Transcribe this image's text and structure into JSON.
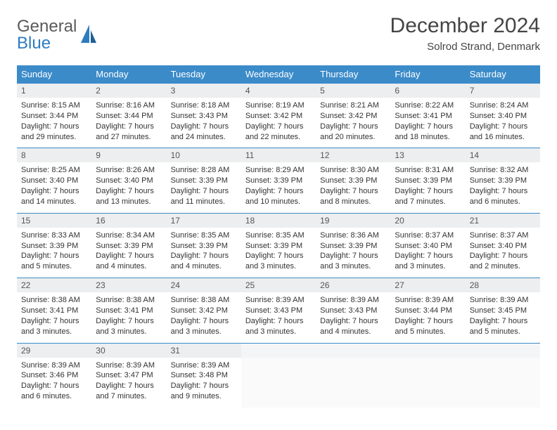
{
  "brand": {
    "part1": "General",
    "part2": "Blue"
  },
  "title": "December 2024",
  "subtitle": "Solrod Strand, Denmark",
  "colors": {
    "header_bg": "#3b8bc9",
    "header_fg": "#ffffff",
    "daynum_bg": "#eceeef",
    "row_border": "#3b8bc9",
    "text": "#333333",
    "page_bg": "#ffffff"
  },
  "typography": {
    "title_fontsize": 30,
    "subtitle_fontsize": 15,
    "header_fontsize": 13,
    "daynum_fontsize": 12,
    "body_fontsize": 11
  },
  "layout": {
    "columns": 7,
    "weeks": 5
  },
  "weekdays": [
    "Sunday",
    "Monday",
    "Tuesday",
    "Wednesday",
    "Thursday",
    "Friday",
    "Saturday"
  ],
  "days": [
    {
      "n": "1",
      "sunrise": "Sunrise: 8:15 AM",
      "sunset": "Sunset: 3:44 PM",
      "daylight": "Daylight: 7 hours and 29 minutes."
    },
    {
      "n": "2",
      "sunrise": "Sunrise: 8:16 AM",
      "sunset": "Sunset: 3:44 PM",
      "daylight": "Daylight: 7 hours and 27 minutes."
    },
    {
      "n": "3",
      "sunrise": "Sunrise: 8:18 AM",
      "sunset": "Sunset: 3:43 PM",
      "daylight": "Daylight: 7 hours and 24 minutes."
    },
    {
      "n": "4",
      "sunrise": "Sunrise: 8:19 AM",
      "sunset": "Sunset: 3:42 PM",
      "daylight": "Daylight: 7 hours and 22 minutes."
    },
    {
      "n": "5",
      "sunrise": "Sunrise: 8:21 AM",
      "sunset": "Sunset: 3:42 PM",
      "daylight": "Daylight: 7 hours and 20 minutes."
    },
    {
      "n": "6",
      "sunrise": "Sunrise: 8:22 AM",
      "sunset": "Sunset: 3:41 PM",
      "daylight": "Daylight: 7 hours and 18 minutes."
    },
    {
      "n": "7",
      "sunrise": "Sunrise: 8:24 AM",
      "sunset": "Sunset: 3:40 PM",
      "daylight": "Daylight: 7 hours and 16 minutes."
    },
    {
      "n": "8",
      "sunrise": "Sunrise: 8:25 AM",
      "sunset": "Sunset: 3:40 PM",
      "daylight": "Daylight: 7 hours and 14 minutes."
    },
    {
      "n": "9",
      "sunrise": "Sunrise: 8:26 AM",
      "sunset": "Sunset: 3:40 PM",
      "daylight": "Daylight: 7 hours and 13 minutes."
    },
    {
      "n": "10",
      "sunrise": "Sunrise: 8:28 AM",
      "sunset": "Sunset: 3:39 PM",
      "daylight": "Daylight: 7 hours and 11 minutes."
    },
    {
      "n": "11",
      "sunrise": "Sunrise: 8:29 AM",
      "sunset": "Sunset: 3:39 PM",
      "daylight": "Daylight: 7 hours and 10 minutes."
    },
    {
      "n": "12",
      "sunrise": "Sunrise: 8:30 AM",
      "sunset": "Sunset: 3:39 PM",
      "daylight": "Daylight: 7 hours and 8 minutes."
    },
    {
      "n": "13",
      "sunrise": "Sunrise: 8:31 AM",
      "sunset": "Sunset: 3:39 PM",
      "daylight": "Daylight: 7 hours and 7 minutes."
    },
    {
      "n": "14",
      "sunrise": "Sunrise: 8:32 AM",
      "sunset": "Sunset: 3:39 PM",
      "daylight": "Daylight: 7 hours and 6 minutes."
    },
    {
      "n": "15",
      "sunrise": "Sunrise: 8:33 AM",
      "sunset": "Sunset: 3:39 PM",
      "daylight": "Daylight: 7 hours and 5 minutes."
    },
    {
      "n": "16",
      "sunrise": "Sunrise: 8:34 AM",
      "sunset": "Sunset: 3:39 PM",
      "daylight": "Daylight: 7 hours and 4 minutes."
    },
    {
      "n": "17",
      "sunrise": "Sunrise: 8:35 AM",
      "sunset": "Sunset: 3:39 PM",
      "daylight": "Daylight: 7 hours and 4 minutes."
    },
    {
      "n": "18",
      "sunrise": "Sunrise: 8:35 AM",
      "sunset": "Sunset: 3:39 PM",
      "daylight": "Daylight: 7 hours and 3 minutes."
    },
    {
      "n": "19",
      "sunrise": "Sunrise: 8:36 AM",
      "sunset": "Sunset: 3:39 PM",
      "daylight": "Daylight: 7 hours and 3 minutes."
    },
    {
      "n": "20",
      "sunrise": "Sunrise: 8:37 AM",
      "sunset": "Sunset: 3:40 PM",
      "daylight": "Daylight: 7 hours and 3 minutes."
    },
    {
      "n": "21",
      "sunrise": "Sunrise: 8:37 AM",
      "sunset": "Sunset: 3:40 PM",
      "daylight": "Daylight: 7 hours and 2 minutes."
    },
    {
      "n": "22",
      "sunrise": "Sunrise: 8:38 AM",
      "sunset": "Sunset: 3:41 PM",
      "daylight": "Daylight: 7 hours and 3 minutes."
    },
    {
      "n": "23",
      "sunrise": "Sunrise: 8:38 AM",
      "sunset": "Sunset: 3:41 PM",
      "daylight": "Daylight: 7 hours and 3 minutes."
    },
    {
      "n": "24",
      "sunrise": "Sunrise: 8:38 AM",
      "sunset": "Sunset: 3:42 PM",
      "daylight": "Daylight: 7 hours and 3 minutes."
    },
    {
      "n": "25",
      "sunrise": "Sunrise: 8:39 AM",
      "sunset": "Sunset: 3:43 PM",
      "daylight": "Daylight: 7 hours and 3 minutes."
    },
    {
      "n": "26",
      "sunrise": "Sunrise: 8:39 AM",
      "sunset": "Sunset: 3:43 PM",
      "daylight": "Daylight: 7 hours and 4 minutes."
    },
    {
      "n": "27",
      "sunrise": "Sunrise: 8:39 AM",
      "sunset": "Sunset: 3:44 PM",
      "daylight": "Daylight: 7 hours and 5 minutes."
    },
    {
      "n": "28",
      "sunrise": "Sunrise: 8:39 AM",
      "sunset": "Sunset: 3:45 PM",
      "daylight": "Daylight: 7 hours and 5 minutes."
    },
    {
      "n": "29",
      "sunrise": "Sunrise: 8:39 AM",
      "sunset": "Sunset: 3:46 PM",
      "daylight": "Daylight: 7 hours and 6 minutes."
    },
    {
      "n": "30",
      "sunrise": "Sunrise: 8:39 AM",
      "sunset": "Sunset: 3:47 PM",
      "daylight": "Daylight: 7 hours and 7 minutes."
    },
    {
      "n": "31",
      "sunrise": "Sunrise: 8:39 AM",
      "sunset": "Sunset: 3:48 PM",
      "daylight": "Daylight: 7 hours and 9 minutes."
    }
  ]
}
